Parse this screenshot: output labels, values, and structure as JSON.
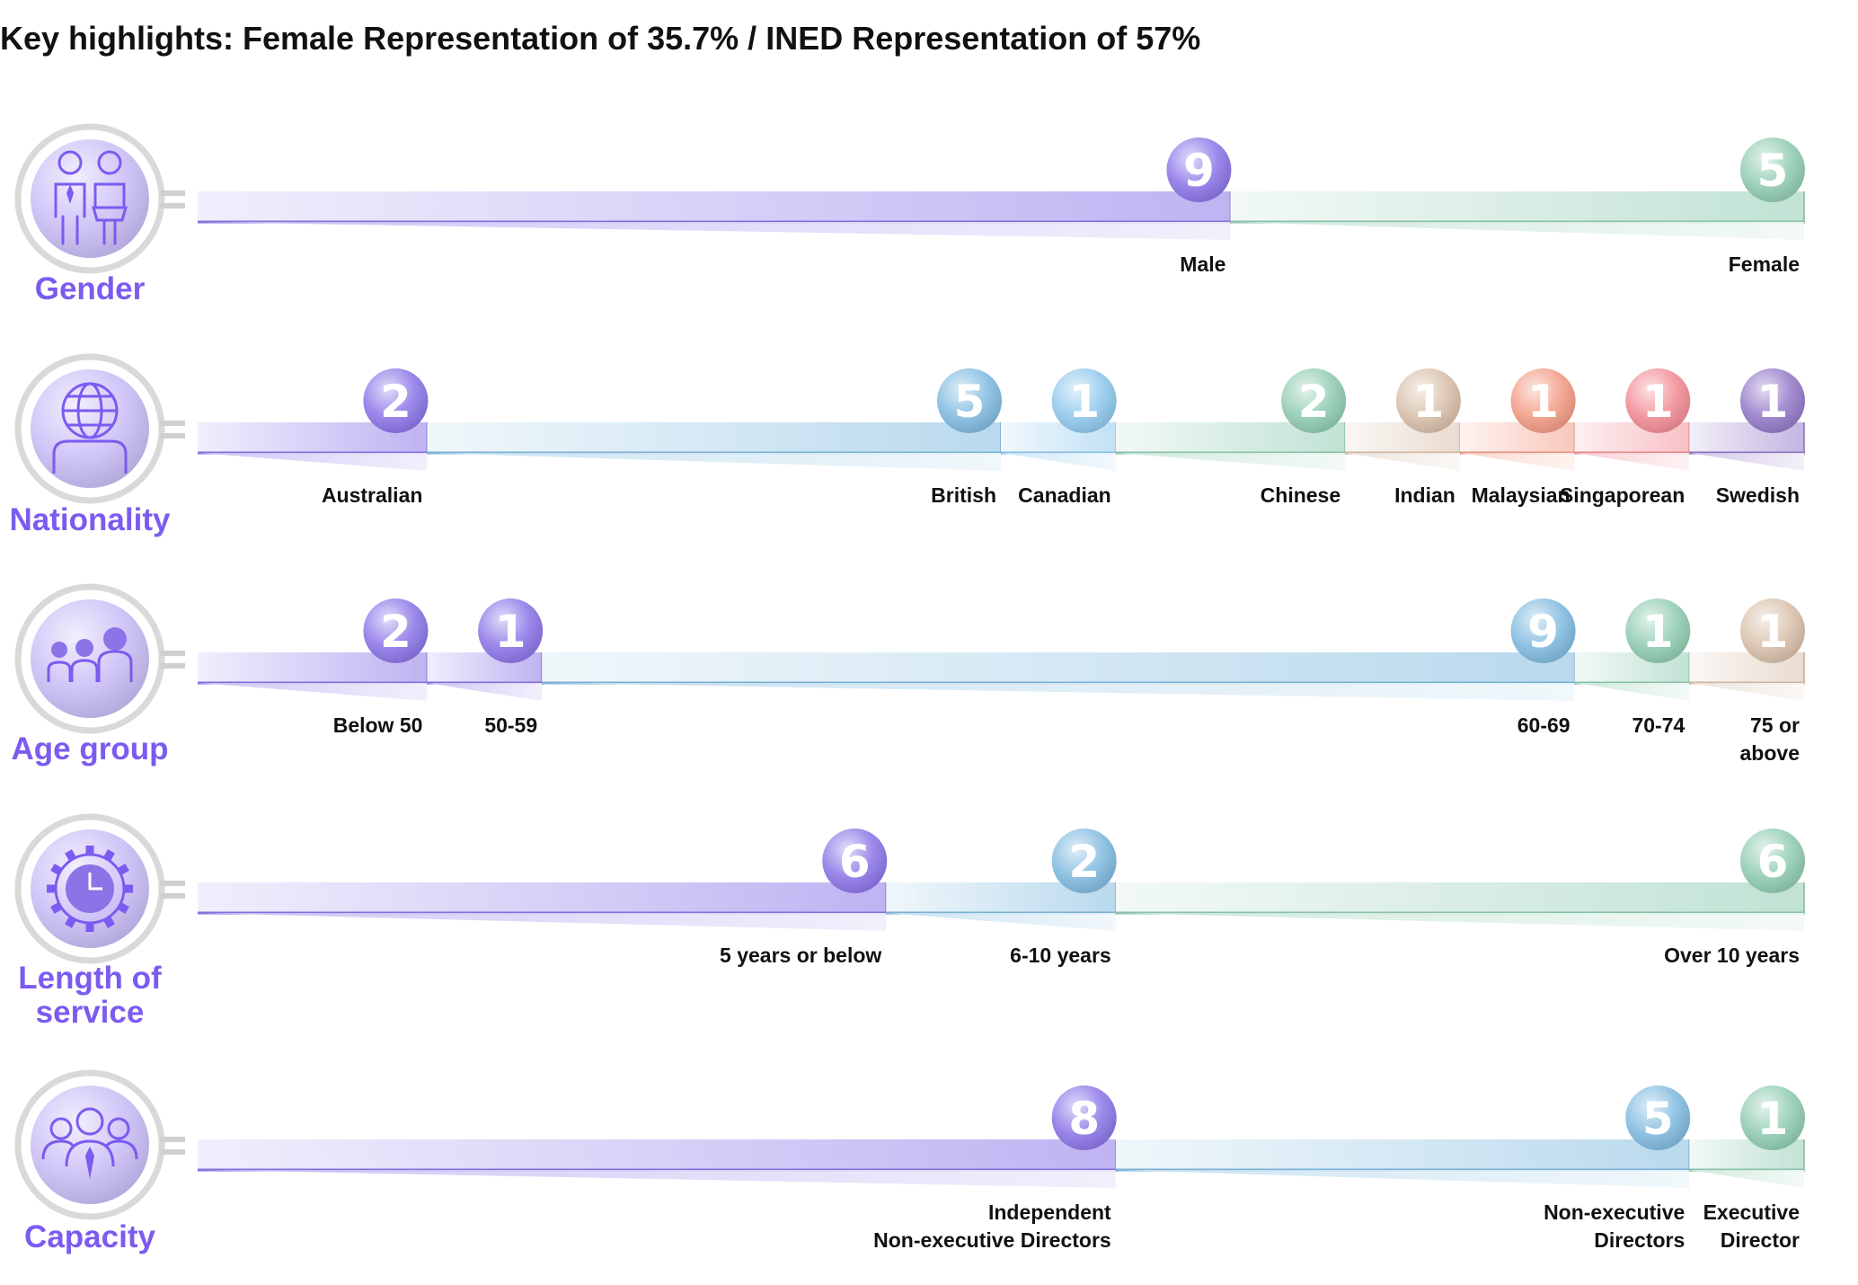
{
  "title": "Key highlights: Female Representation of 35.7% / INED Representation of 57%",
  "colors": {
    "purple": "#8b74e8",
    "blue": "#7fb9df",
    "lightblue": "#8ec8ec",
    "green": "#8fcbb0",
    "tan": "#d8bfa9",
    "salmon": "#f29a84",
    "pink": "#f28b94",
    "violet": "#9378c8",
    "category_text": "#7b5bf0"
  },
  "chart_data": [
    {
      "type": "bar",
      "category": "Gender",
      "icon": "gender-icon",
      "segments": [
        {
          "label": [
            "Male"
          ],
          "value": 9,
          "color": "purple"
        },
        {
          "label": [
            "Female"
          ],
          "value": 5,
          "color": "green"
        }
      ]
    },
    {
      "type": "bar",
      "category": "Nationality",
      "icon": "globe-person-icon",
      "segments": [
        {
          "label": [
            "Australian"
          ],
          "value": 2,
          "color": "purple"
        },
        {
          "label": [
            "British"
          ],
          "value": 5,
          "color": "blue"
        },
        {
          "label": [
            "Canadian"
          ],
          "value": 1,
          "color": "lightblue"
        },
        {
          "label": [
            "Chinese"
          ],
          "value": 2,
          "color": "green"
        },
        {
          "label": [
            "Indian"
          ],
          "value": 1,
          "color": "tan"
        },
        {
          "label": [
            "Malaysian"
          ],
          "value": 1,
          "color": "salmon"
        },
        {
          "label": [
            "Singaporean"
          ],
          "value": 1,
          "color": "pink"
        },
        {
          "label": [
            "Swedish"
          ],
          "value": 1,
          "color": "violet"
        }
      ]
    },
    {
      "type": "bar",
      "category": "Age group",
      "icon": "people-group-icon",
      "segments": [
        {
          "label": [
            "Below 50"
          ],
          "value": 2,
          "color": "purple"
        },
        {
          "label": [
            "50-59"
          ],
          "value": 1,
          "color": "purple"
        },
        {
          "label": [
            "60-69"
          ],
          "value": 9,
          "color": "blue"
        },
        {
          "label": [
            "70-74"
          ],
          "value": 1,
          "color": "green"
        },
        {
          "label": [
            "75 or",
            "above"
          ],
          "value": 1,
          "color": "tan"
        }
      ]
    },
    {
      "type": "bar",
      "category": "Length of service",
      "category_lines": [
        "Length of",
        "service"
      ],
      "icon": "clock-gear-icon",
      "segments": [
        {
          "label": [
            "5 years or below"
          ],
          "value": 6,
          "color": "purple"
        },
        {
          "label": [
            "6-10 years"
          ],
          "value": 2,
          "color": "blue"
        },
        {
          "label": [
            "Over 10 years"
          ],
          "value": 6,
          "color": "green"
        }
      ]
    },
    {
      "type": "bar",
      "category": "Capacity",
      "icon": "team-tie-icon",
      "segments": [
        {
          "label": [
            "Independent",
            "Non-executive Directors"
          ],
          "value": 8,
          "color": "purple"
        },
        {
          "label": [
            "Non-executive",
            "Directors"
          ],
          "value": 5,
          "color": "blue"
        },
        {
          "label": [
            "Executive",
            "Director"
          ],
          "value": 1,
          "color": "green"
        }
      ]
    }
  ]
}
